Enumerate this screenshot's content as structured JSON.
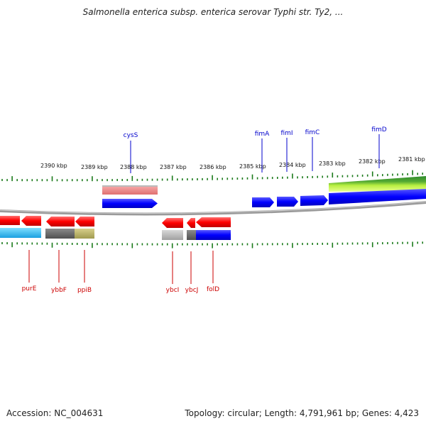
{
  "title": "Salmonella enterica subsp. enterica serovar Typhi str. Ty2, ...",
  "footer": {
    "accession": "Accession: NC_004631",
    "summary": "Topology: circular; Length: 4,791,961 bp; Genes: 4,423"
  },
  "colors": {
    "forward_label": "#0000cc",
    "reverse_label": "#cc0000",
    "tick": "#1a7a1a",
    "backbone": "#808080"
  },
  "scale_labels": [
    "2390 kbp",
    "2389 kbp",
    "2388 kbp",
    "2387 kbp",
    "2386 kbp",
    "2385 kbp",
    "2384 kbp",
    "2383 kbp",
    "2382 kbp",
    "2381 kbp"
  ],
  "genes_top": [
    "cysS",
    "fimA",
    "fimI",
    "fimC",
    "fimD"
  ],
  "genes_bottom": [
    "purE",
    "ybbF",
    "ppiB",
    "ybcI",
    "ybcJ",
    "folD"
  ]
}
